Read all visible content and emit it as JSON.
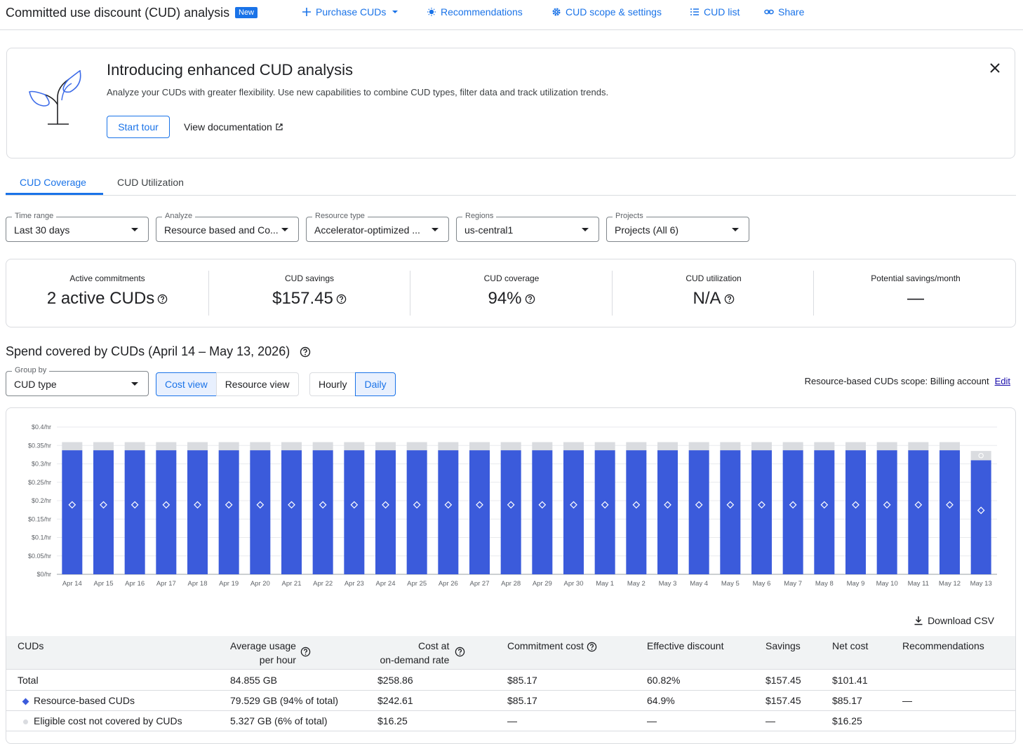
{
  "header": {
    "title": "Committed use discount (CUD) analysis",
    "badge": "New",
    "buttons": {
      "purchase": "Purchase CUDs",
      "recommendations": "Recommendations",
      "scope": "CUD scope & settings",
      "list": "CUD list",
      "share": "Share"
    }
  },
  "banner": {
    "title": "Introducing enhanced CUD analysis",
    "description": "Analyze your CUDs with greater flexibility. Use new capabilities to combine CUD types, filter data and track utilization trends.",
    "start_tour": "Start tour",
    "view_docs": "View documentation"
  },
  "tabs": [
    "CUD Coverage",
    "CUD Utilization"
  ],
  "filters": [
    {
      "label": "Time range",
      "value": "Last 30 days"
    },
    {
      "label": "Analyze",
      "value": "Resource based and Co..."
    },
    {
      "label": "Resource type",
      "value": "Accelerator-optimized ..."
    },
    {
      "label": "Regions",
      "value": "us-central1"
    },
    {
      "label": "Projects",
      "value": "Projects (All 6)"
    }
  ],
  "metrics": [
    {
      "label": "Active commitments",
      "value": "2 active CUDs"
    },
    {
      "label": "CUD savings",
      "value": "$157.45"
    },
    {
      "label": "CUD coverage",
      "value": "94%"
    },
    {
      "label": "CUD utilization",
      "value": "N/A"
    },
    {
      "label": "Potential savings/month",
      "value": "—"
    }
  ],
  "section": {
    "title": "Spend covered by CUDs (April 14 – May 13, 2026)",
    "group_by": {
      "label": "Group by",
      "value": "CUD type"
    },
    "views": [
      "Cost view",
      "Resource view"
    ],
    "granularity": [
      "Hourly",
      "Daily"
    ],
    "scope_text": "Resource-based CUDs scope: Billing account",
    "edit": "Edit",
    "download": "Download CSV"
  },
  "chart_data": {
    "type": "bar",
    "stacked": true,
    "categories": [
      "Apr 14",
      "Apr 15",
      "Apr 16",
      "Apr 17",
      "Apr 18",
      "Apr 19",
      "Apr 20",
      "Apr 21",
      "Apr 22",
      "Apr 23",
      "Apr 24",
      "Apr 25",
      "Apr 26",
      "Apr 27",
      "Apr 28",
      "Apr 29",
      "Apr 30",
      "May 1",
      "May 2",
      "May 3",
      "May 4",
      "May 5",
      "May 6",
      "May 7",
      "May 8",
      "May 9",
      "May 10",
      "May 11",
      "May 12",
      "May 13"
    ],
    "series": [
      {
        "color": "#3b5bdb",
        "values": [
          0.337,
          0.337,
          0.337,
          0.337,
          0.337,
          0.337,
          0.337,
          0.337,
          0.337,
          0.337,
          0.337,
          0.337,
          0.337,
          0.337,
          0.337,
          0.337,
          0.337,
          0.337,
          0.337,
          0.337,
          0.337,
          0.337,
          0.337,
          0.337,
          0.337,
          0.337,
          0.337,
          0.337,
          0.337,
          0.31
        ]
      },
      {
        "color": "#dadce0",
        "values": [
          0.022,
          0.022,
          0.022,
          0.022,
          0.022,
          0.022,
          0.022,
          0.022,
          0.022,
          0.022,
          0.022,
          0.022,
          0.022,
          0.022,
          0.022,
          0.022,
          0.022,
          0.022,
          0.022,
          0.022,
          0.022,
          0.022,
          0.022,
          0.022,
          0.022,
          0.022,
          0.022,
          0.022,
          0.022,
          0.025
        ]
      }
    ],
    "y_ticks": [
      "$0/hr",
      "$0.05/hr",
      "$0.1/hr",
      "$0.15/hr",
      "$0.2/hr",
      "$0.25/hr",
      "$0.3/hr",
      "$0.35/hr",
      "$0.4/hr"
    ],
    "ylim": [
      0,
      0.4
    ],
    "grid": true
  },
  "table": {
    "headers": {
      "cuds": "CUDs",
      "avg_usage_1": "Average usage",
      "avg_usage_2": "per hour",
      "cost_1": "Cost at",
      "cost_2": "on-demand rate",
      "commitment": "Commitment cost",
      "discount": "Effective discount",
      "savings": "Savings",
      "net": "Net cost",
      "recs": "Recommendations"
    },
    "rows": [
      {
        "name": "Total",
        "usage": "84.855 GB",
        "cost": "$258.86",
        "commitment": "$85.17",
        "discount": "60.82%",
        "savings": "$157.45",
        "net": "$101.41",
        "recs": ""
      },
      {
        "name": "Resource-based CUDs",
        "usage": "79.529 GB (94% of total)",
        "cost": "$242.61",
        "commitment": "$85.17",
        "discount": "64.9%",
        "savings": "$157.45",
        "net": "$85.17",
        "recs": "—"
      },
      {
        "name": "Eligible cost not covered by CUDs",
        "usage": "5.327 GB (6% of total)",
        "cost": "$16.25",
        "commitment": "—",
        "discount": "—",
        "savings": "—",
        "net": "$16.25",
        "recs": ""
      }
    ]
  }
}
